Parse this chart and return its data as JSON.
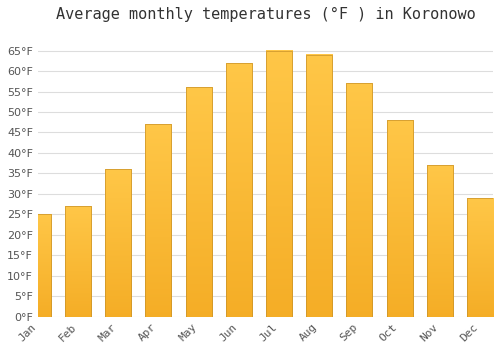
{
  "title": "Average monthly temperatures (°F ) in Koronowo",
  "months": [
    "Jan",
    "Feb",
    "Mar",
    "Apr",
    "May",
    "Jun",
    "Jul",
    "Aug",
    "Sep",
    "Oct",
    "Nov",
    "Dec"
  ],
  "values": [
    25,
    27,
    36,
    47,
    56,
    62,
    65,
    64,
    57,
    48,
    37,
    29
  ],
  "bar_color_top": "#FFC02A",
  "bar_color_bottom": "#F5A800",
  "bar_edge_color": "#C8922A",
  "background_color": "#ffffff",
  "grid_color": "#dddddd",
  "ylim": [
    0,
    70
  ],
  "yticks": [
    0,
    5,
    10,
    15,
    20,
    25,
    30,
    35,
    40,
    45,
    50,
    55,
    60,
    65
  ],
  "title_fontsize": 11,
  "tick_fontsize": 8,
  "font_family": "monospace",
  "tick_color": "#555555",
  "title_color": "#333333"
}
